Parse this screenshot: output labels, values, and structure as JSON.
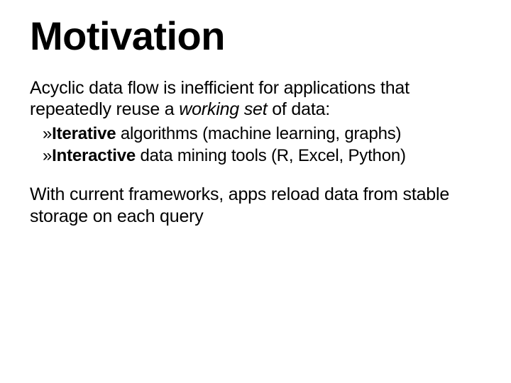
{
  "slide": {
    "title": "Motivation",
    "para1_a": "Acyclic data flow is inefficient for applications that repeatedly reuse a ",
    "para1_italic": "working set",
    "para1_b": " of data:",
    "bullet_glyph": "»",
    "bullets": [
      {
        "bold": "Iterative",
        "rest": " algorithms (machine learning, graphs)"
      },
      {
        "bold": "Interactive",
        "rest": " data mining tools (R, Excel, Python)"
      }
    ],
    "para2": "With current frameworks, apps reload data from stable storage on each query"
  },
  "style": {
    "background_color": "#ffffff",
    "text_color": "#000000",
    "title_fontsize": 56,
    "title_weight": 700,
    "body_fontsize": 25,
    "bullet_fontsize": 24,
    "font_family": "Candara, Corbel, Segoe UI, sans-serif",
    "slide_width": 720,
    "slide_height": 540
  }
}
